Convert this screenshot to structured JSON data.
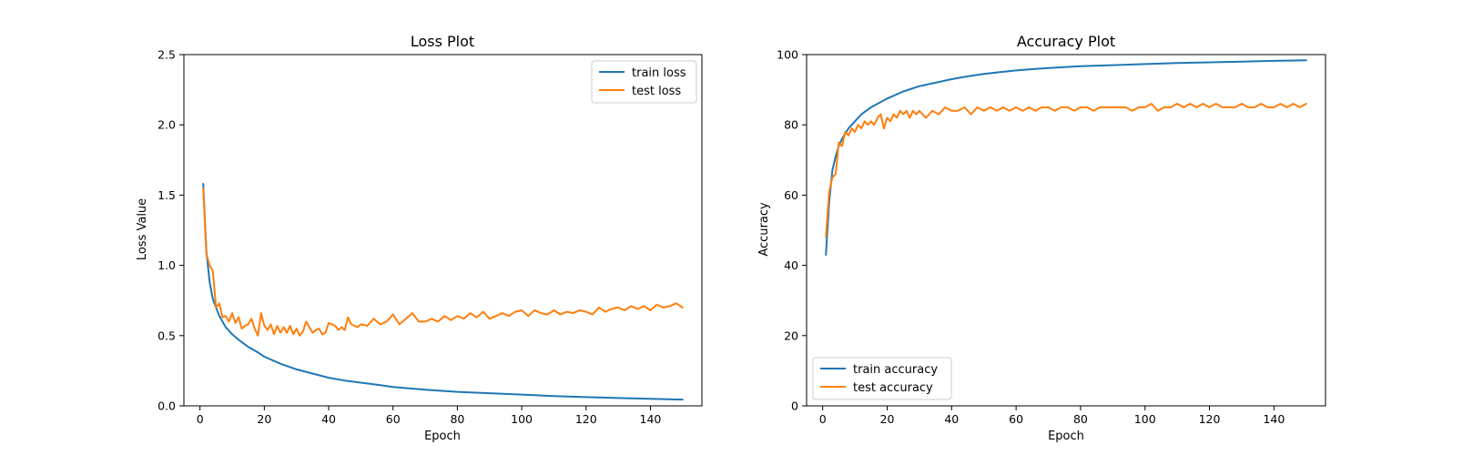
{
  "colors": {
    "train": "#1f77b4",
    "test": "#ff7f0e",
    "axes": "#000000",
    "legend_border": "#cccccc",
    "background": "#ffffff"
  },
  "chart_data": [
    {
      "type": "line",
      "title": "Loss Plot",
      "xlabel": "Epoch",
      "ylabel": "Loss Value",
      "xlim": [
        -5,
        156
      ],
      "ylim": [
        0,
        2.5
      ],
      "xticks": [
        0,
        20,
        40,
        60,
        80,
        100,
        120,
        140
      ],
      "yticks": [
        0.0,
        0.5,
        1.0,
        1.5,
        2.0,
        2.5
      ],
      "ytick_labels": [
        "0.0",
        "0.5",
        "1.0",
        "1.5",
        "2.0",
        "2.5"
      ],
      "legend": "top-right",
      "grid": false,
      "series": [
        {
          "name": "train loss",
          "color": "#1f77b4",
          "points": [
            [
              1,
              1.58
            ],
            [
              2,
              1.1
            ],
            [
              3,
              0.88
            ],
            [
              4,
              0.76
            ],
            [
              5,
              0.7
            ],
            [
              6,
              0.64
            ],
            [
              7,
              0.6
            ],
            [
              8,
              0.56
            ],
            [
              10,
              0.51
            ],
            [
              12,
              0.47
            ],
            [
              15,
              0.42
            ],
            [
              18,
              0.38
            ],
            [
              20,
              0.35
            ],
            [
              25,
              0.3
            ],
            [
              30,
              0.26
            ],
            [
              35,
              0.23
            ],
            [
              40,
              0.2
            ],
            [
              45,
              0.18
            ],
            [
              50,
              0.165
            ],
            [
              55,
              0.15
            ],
            [
              60,
              0.135
            ],
            [
              70,
              0.115
            ],
            [
              80,
              0.1
            ],
            [
              90,
              0.09
            ],
            [
              100,
              0.08
            ],
            [
              110,
              0.07
            ],
            [
              120,
              0.062
            ],
            [
              130,
              0.056
            ],
            [
              140,
              0.05
            ],
            [
              150,
              0.045
            ]
          ]
        },
        {
          "name": "test loss",
          "color": "#ff7f0e",
          "points": [
            [
              1,
              1.55
            ],
            [
              2,
              1.08
            ],
            [
              3,
              1.0
            ],
            [
              4,
              0.96
            ],
            [
              5,
              0.7
            ],
            [
              6,
              0.73
            ],
            [
              7,
              0.63
            ],
            [
              8,
              0.64
            ],
            [
              9,
              0.6
            ],
            [
              10,
              0.66
            ],
            [
              11,
              0.59
            ],
            [
              12,
              0.63
            ],
            [
              13,
              0.55
            ],
            [
              14,
              0.57
            ],
            [
              15,
              0.58
            ],
            [
              16,
              0.62
            ],
            [
              17,
              0.55
            ],
            [
              18,
              0.5
            ],
            [
              19,
              0.66
            ],
            [
              20,
              0.57
            ],
            [
              21,
              0.54
            ],
            [
              22,
              0.58
            ],
            [
              23,
              0.51
            ],
            [
              24,
              0.57
            ],
            [
              25,
              0.52
            ],
            [
              26,
              0.56
            ],
            [
              27,
              0.52
            ],
            [
              28,
              0.57
            ],
            [
              29,
              0.51
            ],
            [
              30,
              0.55
            ],
            [
              31,
              0.5
            ],
            [
              32,
              0.53
            ],
            [
              33,
              0.6
            ],
            [
              34,
              0.56
            ],
            [
              35,
              0.52
            ],
            [
              36,
              0.54
            ],
            [
              37,
              0.55
            ],
            [
              38,
              0.51
            ],
            [
              39,
              0.52
            ],
            [
              40,
              0.59
            ],
            [
              41,
              0.58
            ],
            [
              42,
              0.57
            ],
            [
              43,
              0.54
            ],
            [
              44,
              0.56
            ],
            [
              45,
              0.54
            ],
            [
              46,
              0.63
            ],
            [
              47,
              0.58
            ],
            [
              48,
              0.57
            ],
            [
              49,
              0.56
            ],
            [
              50,
              0.58
            ],
            [
              52,
              0.57
            ],
            [
              54,
              0.62
            ],
            [
              56,
              0.58
            ],
            [
              58,
              0.6
            ],
            [
              60,
              0.65
            ],
            [
              62,
              0.58
            ],
            [
              64,
              0.62
            ],
            [
              66,
              0.66
            ],
            [
              68,
              0.6
            ],
            [
              70,
              0.6
            ],
            [
              72,
              0.62
            ],
            [
              74,
              0.6
            ],
            [
              76,
              0.64
            ],
            [
              78,
              0.61
            ],
            [
              80,
              0.64
            ],
            [
              82,
              0.62
            ],
            [
              84,
              0.66
            ],
            [
              86,
              0.63
            ],
            [
              88,
              0.67
            ],
            [
              90,
              0.62
            ],
            [
              92,
              0.64
            ],
            [
              94,
              0.66
            ],
            [
              96,
              0.64
            ],
            [
              98,
              0.67
            ],
            [
              100,
              0.68
            ],
            [
              102,
              0.64
            ],
            [
              104,
              0.68
            ],
            [
              106,
              0.66
            ],
            [
              108,
              0.65
            ],
            [
              110,
              0.68
            ],
            [
              112,
              0.65
            ],
            [
              114,
              0.67
            ],
            [
              116,
              0.66
            ],
            [
              118,
              0.68
            ],
            [
              120,
              0.67
            ],
            [
              122,
              0.65
            ],
            [
              124,
              0.7
            ],
            [
              126,
              0.67
            ],
            [
              128,
              0.69
            ],
            [
              130,
              0.7
            ],
            [
              132,
              0.68
            ],
            [
              134,
              0.71
            ],
            [
              136,
              0.69
            ],
            [
              138,
              0.71
            ],
            [
              140,
              0.68
            ],
            [
              142,
              0.72
            ],
            [
              144,
              0.7
            ],
            [
              146,
              0.71
            ],
            [
              148,
              0.73
            ],
            [
              150,
              0.7
            ]
          ]
        }
      ]
    },
    {
      "type": "line",
      "title": "Accuracy Plot",
      "xlabel": "Epoch",
      "ylabel": "Accuracy",
      "xlim": [
        -5,
        156
      ],
      "ylim": [
        0,
        100
      ],
      "xticks": [
        0,
        20,
        40,
        60,
        80,
        100,
        120,
        140
      ],
      "yticks": [
        0,
        20,
        40,
        60,
        80,
        100
      ],
      "ytick_labels": [
        "0",
        "20",
        "40",
        "60",
        "80",
        "100"
      ],
      "legend": "bottom-left",
      "grid": false,
      "series": [
        {
          "name": "train accuracy",
          "color": "#1f77b4",
          "points": [
            [
              1,
              43
            ],
            [
              2,
              58
            ],
            [
              3,
              67
            ],
            [
              4,
              71
            ],
            [
              5,
              74
            ],
            [
              6,
              76
            ],
            [
              7,
              77.5
            ],
            [
              8,
              79
            ],
            [
              10,
              81
            ],
            [
              12,
              83
            ],
            [
              15,
              85
            ],
            [
              18,
              86.5
            ],
            [
              20,
              87.5
            ],
            [
              25,
              89.5
            ],
            [
              30,
              91
            ],
            [
              35,
              92
            ],
            [
              40,
              93
            ],
            [
              45,
              93.8
            ],
            [
              50,
              94.5
            ],
            [
              55,
              95
            ],
            [
              60,
              95.5
            ],
            [
              70,
              96.2
            ],
            [
              80,
              96.7
            ],
            [
              90,
              97
            ],
            [
              100,
              97.3
            ],
            [
              110,
              97.6
            ],
            [
              120,
              97.8
            ],
            [
              130,
              98
            ],
            [
              140,
              98.2
            ],
            [
              150,
              98.4
            ]
          ]
        },
        {
          "name": "test accuracy",
          "color": "#ff7f0e",
          "points": [
            [
              1,
              48
            ],
            [
              2,
              61
            ],
            [
              3,
              65
            ],
            [
              4,
              66
            ],
            [
              5,
              75
            ],
            [
              6,
              74
            ],
            [
              7,
              78
            ],
            [
              8,
              77
            ],
            [
              9,
              79
            ],
            [
              10,
              78
            ],
            [
              11,
              80
            ],
            [
              12,
              79
            ],
            [
              13,
              81
            ],
            [
              14,
              80
            ],
            [
              15,
              81
            ],
            [
              16,
              80
            ],
            [
              17,
              82
            ],
            [
              18,
              83
            ],
            [
              19,
              79
            ],
            [
              20,
              82
            ],
            [
              21,
              81
            ],
            [
              22,
              83
            ],
            [
              23,
              82
            ],
            [
              24,
              84
            ],
            [
              25,
              83
            ],
            [
              26,
              84
            ],
            [
              27,
              82
            ],
            [
              28,
              84
            ],
            [
              29,
              83
            ],
            [
              30,
              84
            ],
            [
              32,
              82
            ],
            [
              34,
              84
            ],
            [
              36,
              83
            ],
            [
              38,
              85
            ],
            [
              40,
              84
            ],
            [
              42,
              84
            ],
            [
              44,
              85
            ],
            [
              46,
              83
            ],
            [
              48,
              85
            ],
            [
              50,
              84
            ],
            [
              52,
              85
            ],
            [
              54,
              84
            ],
            [
              56,
              85
            ],
            [
              58,
              84
            ],
            [
              60,
              85
            ],
            [
              62,
              84
            ],
            [
              64,
              85
            ],
            [
              66,
              84
            ],
            [
              68,
              85
            ],
            [
              70,
              85
            ],
            [
              72,
              84
            ],
            [
              74,
              85
            ],
            [
              76,
              85
            ],
            [
              78,
              84
            ],
            [
              80,
              85
            ],
            [
              82,
              85
            ],
            [
              84,
              84
            ],
            [
              86,
              85
            ],
            [
              88,
              85
            ],
            [
              90,
              85
            ],
            [
              92,
              85
            ],
            [
              94,
              85
            ],
            [
              96,
              84
            ],
            [
              98,
              85
            ],
            [
              100,
              85
            ],
            [
              102,
              86
            ],
            [
              104,
              84
            ],
            [
              106,
              85
            ],
            [
              108,
              85
            ],
            [
              110,
              86
            ],
            [
              112,
              85
            ],
            [
              114,
              86
            ],
            [
              116,
              85
            ],
            [
              118,
              86
            ],
            [
              120,
              85
            ],
            [
              122,
              86
            ],
            [
              124,
              85
            ],
            [
              126,
              85
            ],
            [
              128,
              85
            ],
            [
              130,
              86
            ],
            [
              132,
              85
            ],
            [
              134,
              85
            ],
            [
              136,
              86
            ],
            [
              138,
              85
            ],
            [
              140,
              85
            ],
            [
              142,
              86
            ],
            [
              144,
              85
            ],
            [
              146,
              86
            ],
            [
              148,
              85
            ],
            [
              150,
              86
            ]
          ]
        }
      ]
    }
  ]
}
